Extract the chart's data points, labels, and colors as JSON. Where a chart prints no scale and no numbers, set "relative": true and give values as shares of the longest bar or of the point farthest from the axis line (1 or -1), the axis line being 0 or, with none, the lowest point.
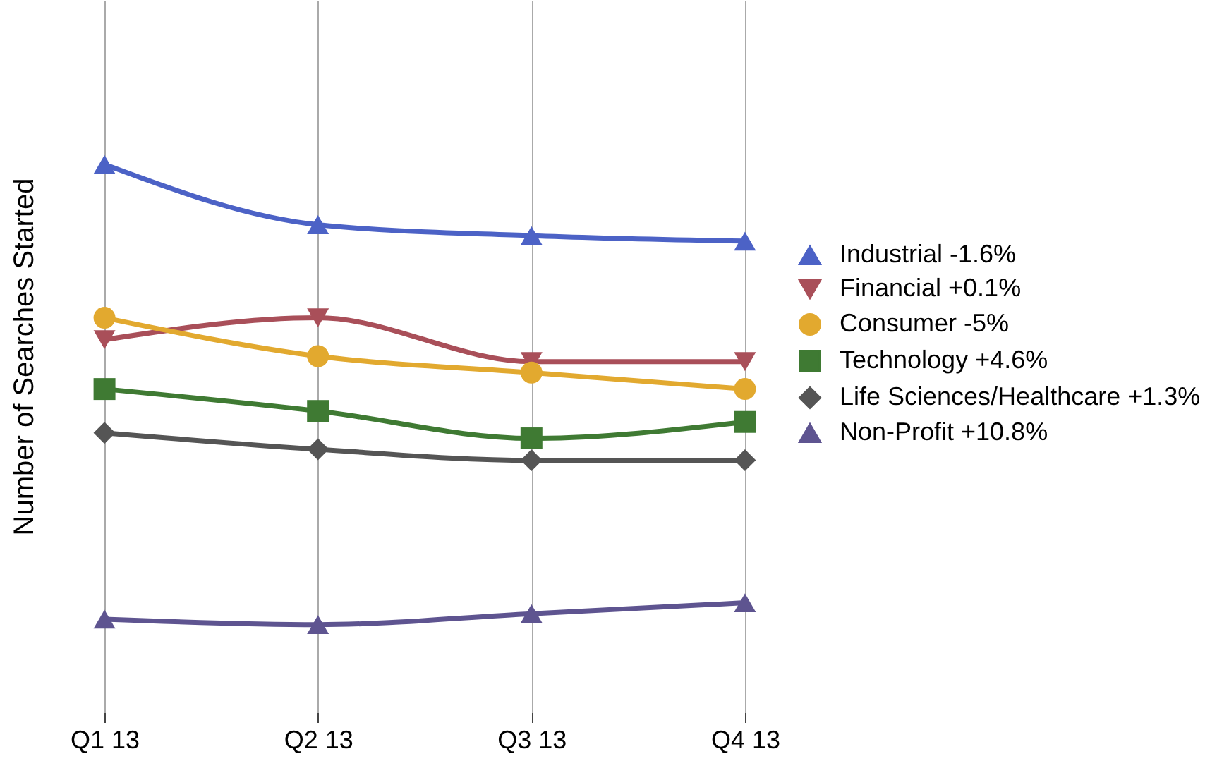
{
  "chart_data": {
    "type": "line",
    "relative": true,
    "ylabel": "Number of Searches Started",
    "categories": [
      "Q1 13",
      "Q2 13",
      "Q3 13",
      "Q4 13"
    ],
    "grid": "x",
    "legend": "right",
    "line_style": "solid",
    "series": [
      {
        "name": "Industrial -1.6%",
        "color": "#4c62c6",
        "marker": "triangle",
        "values": [
          1,
          0.89,
          0.87,
          0.86
        ]
      },
      {
        "name": "Financial +0.1%",
        "color": "#a94f59",
        "marker": "triangle-down",
        "values": [
          0.68,
          0.72,
          0.64,
          0.64
        ]
      },
      {
        "name": "Consumer -5%",
        "color": "#e2a92f",
        "marker": "circle",
        "values": [
          0.72,
          0.65,
          0.62,
          0.59
        ]
      },
      {
        "name": "Technology +4.6%",
        "color": "#3f7a33",
        "marker": "square",
        "values": [
          0.59,
          0.55,
          0.5,
          0.53
        ]
      },
      {
        "name": "Life Sciences/Healthcare +1.3%",
        "color": "#555555",
        "marker": "diamond",
        "values": [
          0.51,
          0.48,
          0.46,
          0.46
        ]
      },
      {
        "name": "Non-Profit +10.8%",
        "color": "#5e5490",
        "marker": "triangle",
        "values": [
          0.17,
          0.16,
          0.18,
          0.2
        ]
      }
    ]
  }
}
